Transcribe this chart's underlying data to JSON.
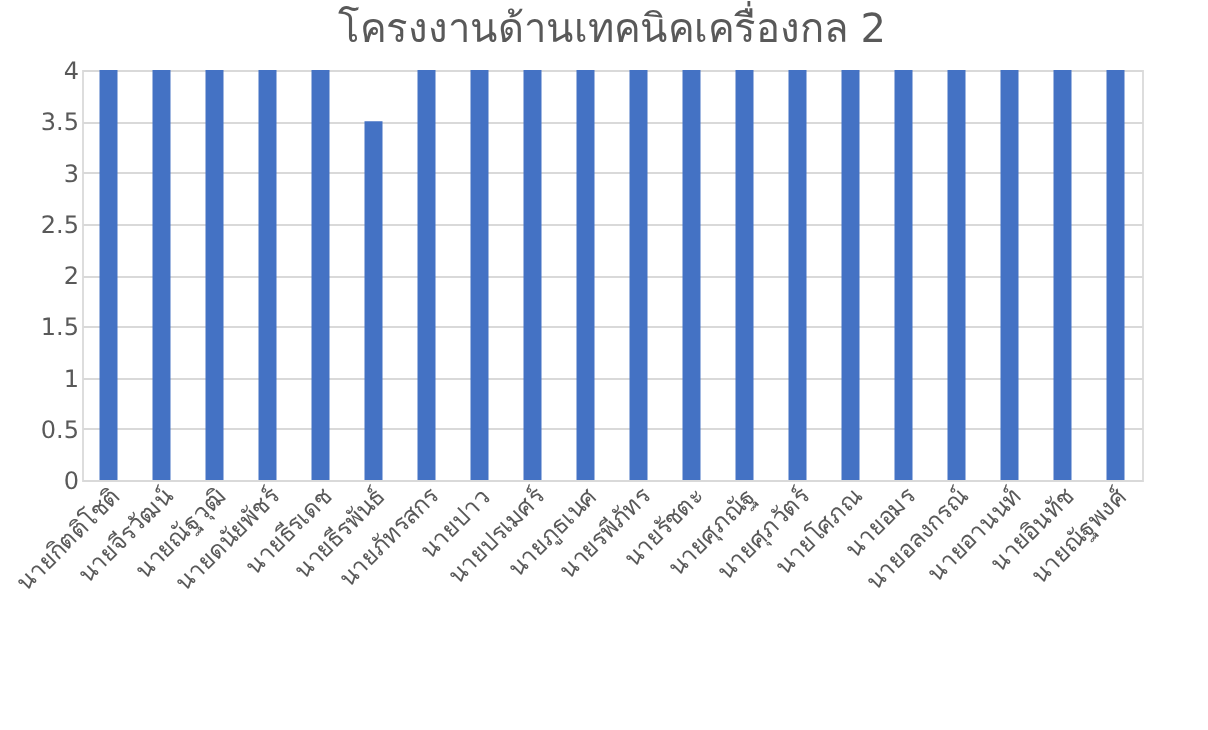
{
  "chart_data": {
    "type": "bar",
    "title": "โครงงานด้านเทคนิคเครื่องกล 2",
    "categories": [
      "นายกิตติโชติ",
      "นายจีรวัฒน์",
      "นายณัฐวุฒิ",
      "นายดนัยพัชร์",
      "นายธีรเดช",
      "นายธีรพันธ์",
      "นายภัทรสกร",
      "นายปาว",
      "นายปรเมศร์",
      "นายภูธเนศ",
      "นายรพีภัทร",
      "นายรัชตะ",
      "นายศุภณัฐ",
      "นายศุภวัตร์",
      "นายโศภณ",
      "นายอมร",
      "นายอลงกรณ์",
      "นายอานนท์",
      "นายอินทัช",
      "นายณัฐพงศ์"
    ],
    "values": [
      4,
      4,
      4,
      4,
      4,
      3.5,
      4,
      4,
      4,
      4,
      4,
      4,
      4,
      4,
      4,
      4,
      4,
      4,
      4,
      4
    ],
    "color": "#4472c4",
    "ylim": [
      0,
      4
    ],
    "yticks": [
      0,
      0.5,
      1,
      1.5,
      2,
      2.5,
      3,
      3.5,
      4
    ],
    "grid": "y"
  }
}
